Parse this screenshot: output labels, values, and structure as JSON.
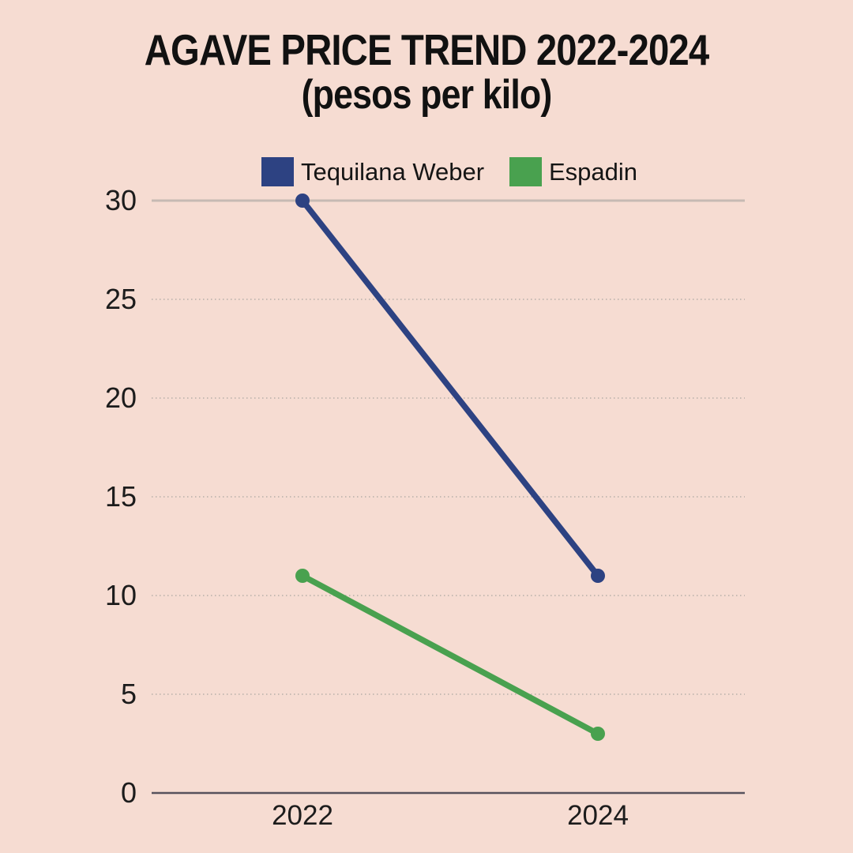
{
  "title": {
    "line1": "AGAVE PRICE TREND 2022-2024",
    "line2": "(pesos per kilo)"
  },
  "legend": [
    {
      "label": "Tequilana Weber",
      "color": "#2d4282"
    },
    {
      "label": "Espadin",
      "color": "#49a14f"
    }
  ],
  "chart_data": {
    "type": "line",
    "title": "AGAVE PRICE TREND 2022-2024",
    "subtitle": "(pesos per kilo)",
    "categories": [
      "2022",
      "2024"
    ],
    "series": [
      {
        "name": "Tequilana Weber",
        "values": [
          30,
          11
        ],
        "color": "#2d4282"
      },
      {
        "name": "Espadin",
        "values": [
          11,
          3
        ],
        "color": "#49a14f"
      }
    ],
    "yticks": [
      0,
      5,
      10,
      15,
      20,
      25,
      30
    ],
    "ylim": [
      0,
      30
    ],
    "grid": true,
    "legend_position": "top",
    "markers": "endpoints"
  },
  "colors": {
    "background": "#f6dcd2",
    "grid_light": "#c6bab3",
    "axis_zero": "#57525d",
    "text": "#1c1c1c"
  }
}
